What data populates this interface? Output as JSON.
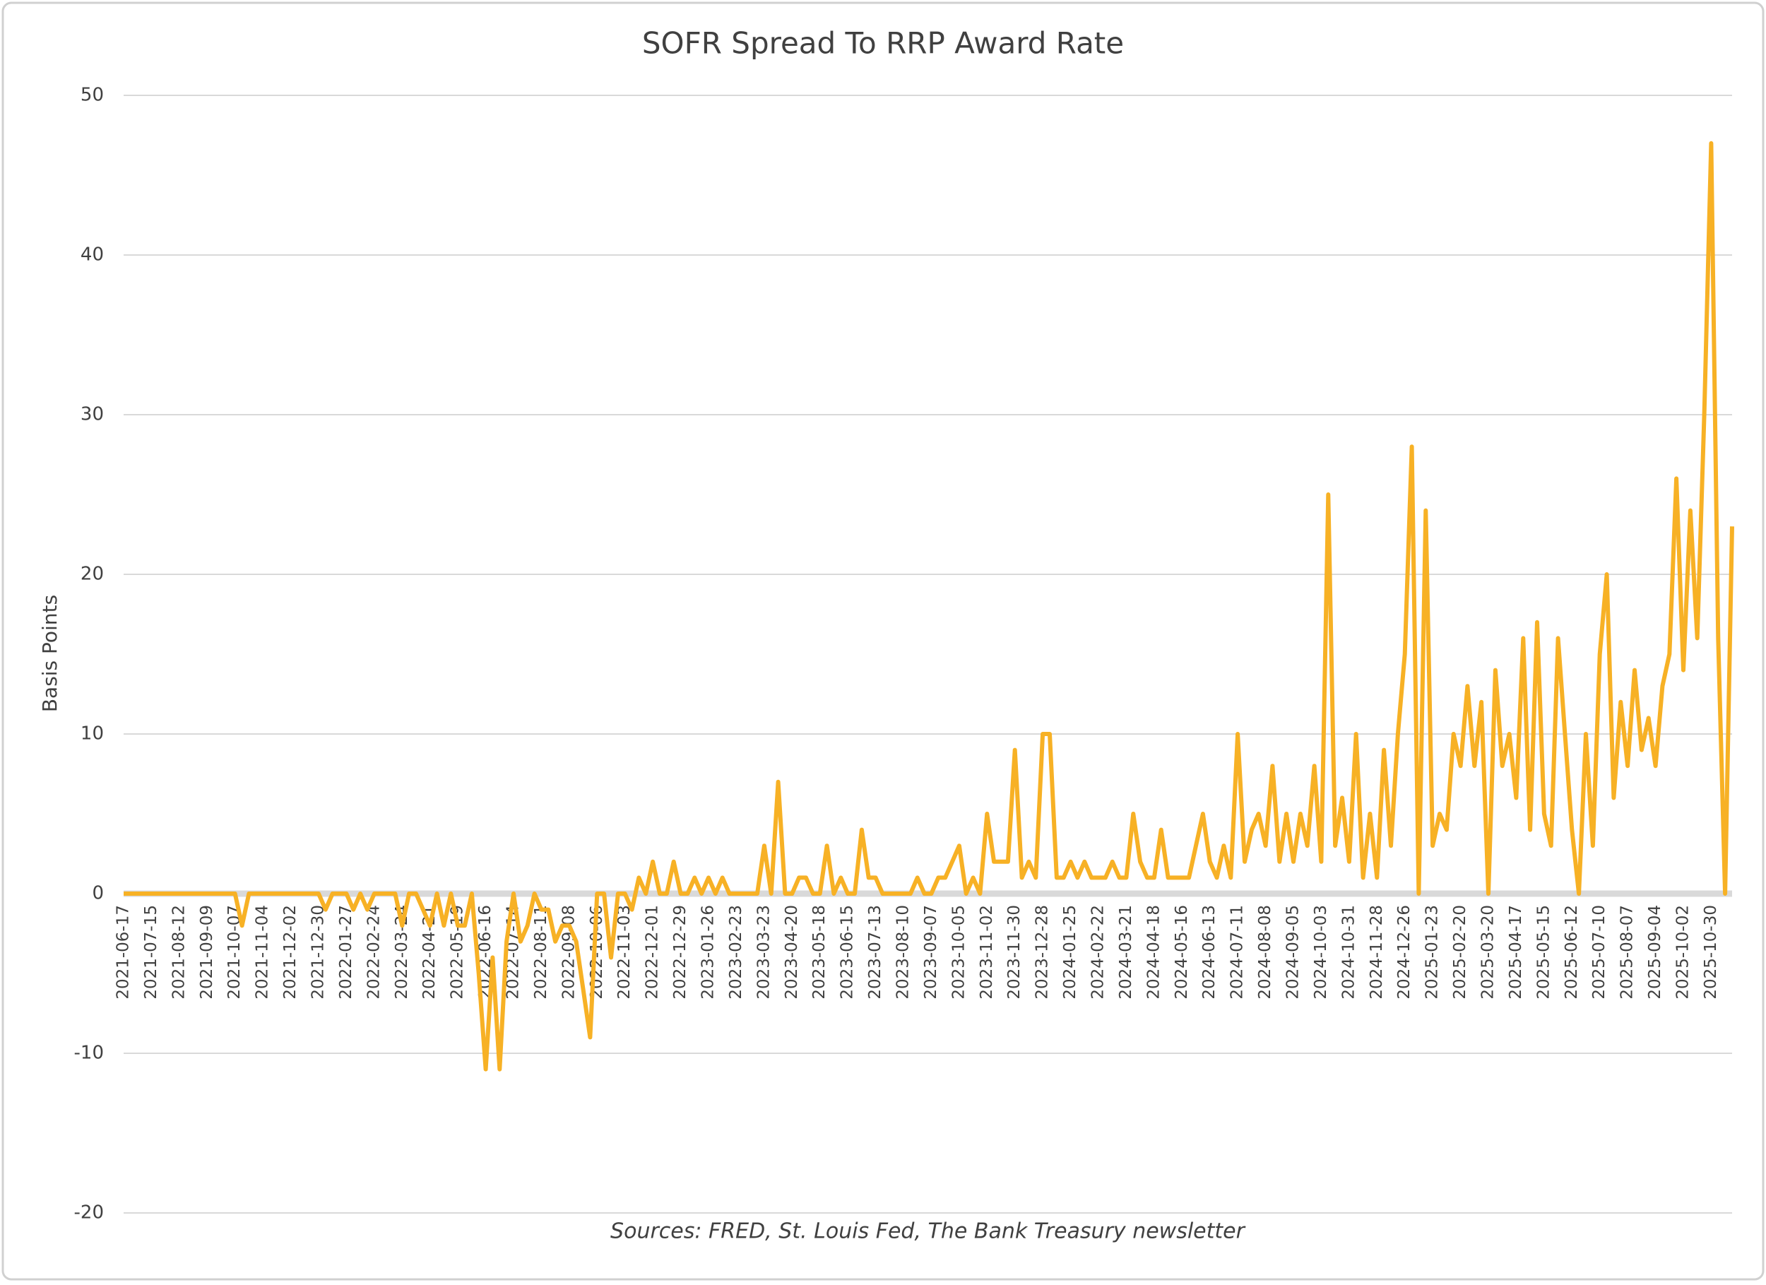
{
  "chart_data": {
    "type": "line",
    "title": "SOFR Spread To RRP Award Rate",
    "y_label": "Basis Points",
    "note": "Sources: FRED, St. Louis Fed, The Bank Treasury newsletter",
    "color": "#f7b125",
    "grid": true,
    "ylim": [
      -20,
      50
    ],
    "yticks": [
      -20,
      -10,
      0,
      10,
      20,
      30,
      40,
      50
    ],
    "categories": [
      "2021-06-17",
      null,
      null,
      null,
      "2021-07-15",
      null,
      null,
      null,
      "2021-08-12",
      null,
      null,
      null,
      "2021-09-09",
      null,
      null,
      null,
      "2021-10-07",
      null,
      null,
      null,
      "2021-11-04",
      null,
      null,
      null,
      "2021-12-02",
      null,
      null,
      null,
      "2021-12-30",
      null,
      null,
      null,
      "2022-01-27",
      null,
      null,
      null,
      "2022-02-24",
      null,
      null,
      null,
      "2022-03-24",
      null,
      null,
      null,
      "2022-04-21",
      null,
      null,
      null,
      "2022-05-19",
      null,
      null,
      null,
      "2022-06-16",
      null,
      null,
      null,
      "2022-07-14",
      null,
      null,
      null,
      "2022-08-11",
      null,
      null,
      null,
      "2022-09-08",
      null,
      null,
      null,
      "2022-10-06",
      null,
      null,
      null,
      "2022-11-03",
      null,
      null,
      null,
      "2022-12-01",
      null,
      null,
      null,
      "2022-12-29",
      null,
      null,
      null,
      "2023-01-26",
      null,
      null,
      null,
      "2023-02-23",
      null,
      null,
      null,
      "2023-03-23",
      null,
      null,
      null,
      "2023-04-20",
      null,
      null,
      null,
      "2023-05-18",
      null,
      null,
      null,
      "2023-06-15",
      null,
      null,
      null,
      "2023-07-13",
      null,
      null,
      null,
      "2023-08-10",
      null,
      null,
      null,
      "2023-09-07",
      null,
      null,
      null,
      "2023-10-05",
      null,
      null,
      null,
      "2023-11-02",
      null,
      null,
      null,
      "2023-11-30",
      null,
      null,
      null,
      "2023-12-28",
      null,
      null,
      null,
      "2024-01-25",
      null,
      null,
      null,
      "2024-02-22",
      null,
      null,
      null,
      "2024-03-21",
      null,
      null,
      null,
      "2024-04-18",
      null,
      null,
      null,
      "2024-05-16",
      null,
      null,
      null,
      "2024-06-13",
      null,
      null,
      null,
      "2024-07-11",
      null,
      null,
      null,
      "2024-08-08",
      null,
      null,
      null,
      "2024-09-05",
      null,
      null,
      null,
      "2024-10-03",
      null,
      null,
      null,
      "2024-10-31",
      null,
      null,
      null,
      "2024-11-28",
      null,
      null,
      null,
      "2024-12-26",
      null,
      null,
      null,
      "2025-01-23",
      null,
      null,
      null,
      "2025-02-20",
      null,
      null,
      null,
      "2025-03-20",
      null,
      null,
      null,
      "2025-04-17",
      null,
      null,
      null,
      "2025-05-15",
      null,
      null,
      null,
      "2025-06-12",
      null,
      null,
      null,
      "2025-07-10",
      null,
      null,
      null,
      "2025-08-07",
      null,
      null,
      null,
      "2025-09-04",
      null,
      null,
      null,
      "2025-10-02",
      null,
      null,
      null,
      "2025-10-30",
      null,
      null,
      null
    ],
    "values": [
      0,
      0,
      0,
      0,
      0,
      0,
      0,
      0,
      0,
      0,
      0,
      0,
      0,
      0,
      0,
      0,
      0,
      -2,
      0,
      0,
      0,
      0,
      0,
      0,
      0,
      0,
      0,
      0,
      0,
      -1,
      0,
      0,
      0,
      -1,
      0,
      -1,
      0,
      0,
      0,
      0,
      -2,
      0,
      0,
      -1,
      -2,
      0,
      -2,
      0,
      -2,
      -2,
      0,
      -5,
      -11,
      -4,
      -11,
      -3,
      0,
      -3,
      -2,
      0,
      -1,
      -1,
      -3,
      -2,
      -2,
      -3,
      -6,
      -9,
      0,
      0,
      -4,
      0,
      0,
      -1,
      1,
      0,
      2,
      0,
      0,
      2,
      0,
      0,
      1,
      0,
      1,
      0,
      1,
      0,
      0,
      0,
      0,
      0,
      3,
      0,
      7,
      0,
      0,
      1,
      1,
      0,
      0,
      3,
      0,
      1,
      0,
      0,
      4,
      1,
      1,
      0,
      0,
      0,
      0,
      0,
      1,
      0,
      0,
      1,
      1,
      2,
      3,
      0,
      1,
      0,
      5,
      2,
      2,
      2,
      9,
      1,
      2,
      1,
      10,
      10,
      1,
      1,
      2,
      1,
      2,
      1,
      1,
      1,
      2,
      1,
      1,
      5,
      2,
      1,
      1,
      4,
      1,
      1,
      1,
      1,
      3,
      5,
      2,
      1,
      3,
      1,
      10,
      2,
      4,
      5,
      3,
      8,
      2,
      5,
      2,
      5,
      3,
      8,
      2,
      25,
      3,
      6,
      2,
      10,
      1,
      5,
      1,
      9,
      3,
      10,
      15,
      28,
      0,
      24,
      3,
      5,
      4,
      10,
      8,
      13,
      8,
      12,
      0,
      14,
      8,
      10,
      6,
      16,
      4,
      17,
      5,
      3,
      16,
      10,
      4,
      0,
      10,
      3,
      15,
      20,
      6,
      12,
      8,
      14,
      9,
      11,
      8,
      13,
      15,
      26,
      14,
      24,
      16,
      30,
      47,
      16,
      0,
      23
    ]
  }
}
